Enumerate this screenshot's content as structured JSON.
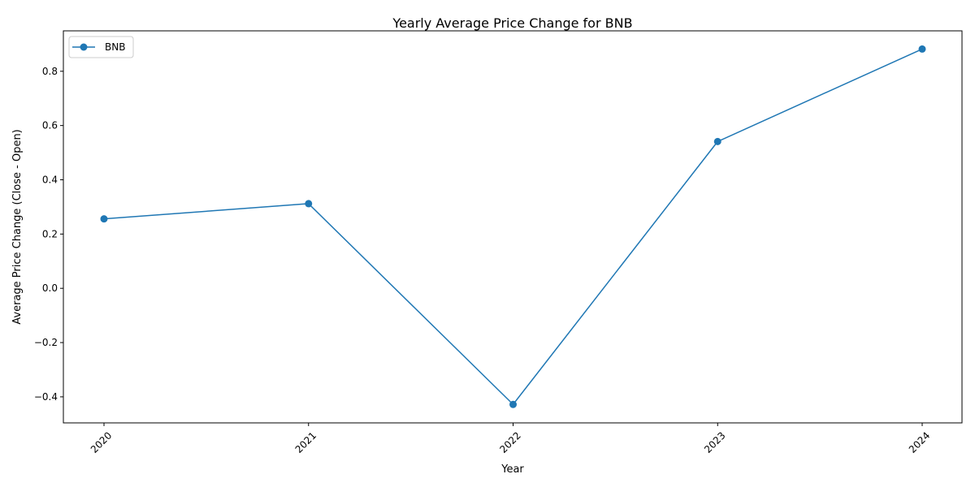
{
  "chart_data": {
    "type": "line",
    "title": "Yearly Average Price Change for BNB",
    "xlabel": "Year",
    "ylabel": "Average Price Change (Close - Open)",
    "categories": [
      "2020",
      "2021",
      "2022",
      "2023",
      "2024"
    ],
    "series": [
      {
        "name": "BNB",
        "values": [
          0.256,
          0.312,
          -0.428,
          0.541,
          0.882
        ],
        "color": "#1f77b4",
        "marker": "circle"
      }
    ],
    "ylim": [
      -0.496,
      0.949
    ],
    "yticks": [
      -0.4,
      -0.2,
      0.0,
      0.2,
      0.4,
      0.6,
      0.8
    ],
    "ytick_labels": [
      "−0.4",
      "−0.2",
      "0.0",
      "0.2",
      "0.4",
      "0.6",
      "0.8"
    ],
    "xtick_rotation": 45,
    "grid": false,
    "legend_position": "upper-left"
  }
}
